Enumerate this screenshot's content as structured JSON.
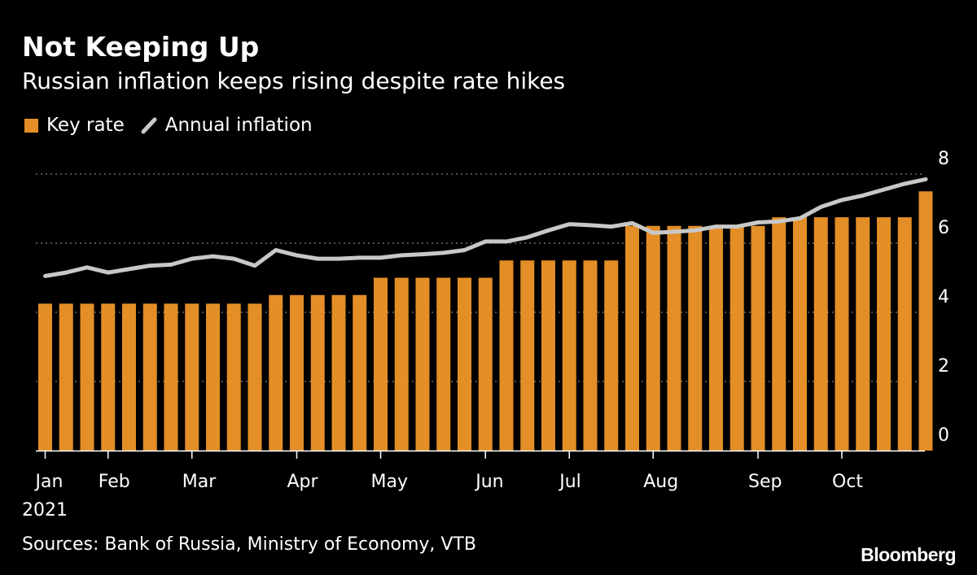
{
  "header": {
    "title": "Not Keeping Up",
    "subtitle": "Russian inflation keeps rising despite rate hikes"
  },
  "legend": {
    "bar_label": "Key rate",
    "line_label": "Annual inflation"
  },
  "footer": {
    "source": "Sources: Bank of Russia, Ministry of Economy, VTB",
    "brand": "Bloomberg"
  },
  "colors": {
    "bar": "#E38E26",
    "line": "#C8C8C8",
    "grid": "#808080",
    "background": "#000000"
  },
  "chart_data": {
    "type": "bar",
    "legend_position": "top-left",
    "grid": true,
    "ylim": [
      0,
      8
    ],
    "yticks": [
      0,
      2,
      4,
      6,
      8
    ],
    "x_period_labels": [
      "Jan",
      "Feb",
      "Mar",
      "Apr",
      "May",
      "Jun",
      "Jul",
      "Aug",
      "Sep",
      "Oct"
    ],
    "x_period_label_index": [
      0,
      3,
      7,
      12,
      16,
      21,
      25,
      29,
      34,
      38
    ],
    "x_year_label": "2021",
    "series": [
      {
        "name": "Key rate",
        "type": "bar",
        "values": [
          4.25,
          4.25,
          4.25,
          4.25,
          4.25,
          4.25,
          4.25,
          4.25,
          4.25,
          4.25,
          4.25,
          4.5,
          4.5,
          4.5,
          4.5,
          4.5,
          5.0,
          5.0,
          5.0,
          5.0,
          5.0,
          5.0,
          5.5,
          5.5,
          5.5,
          5.5,
          5.5,
          5.5,
          6.5,
          6.5,
          6.5,
          6.5,
          6.5,
          6.5,
          6.5,
          6.75,
          6.75,
          6.75,
          6.75,
          6.75,
          6.75,
          6.75,
          7.5
        ]
      },
      {
        "name": "Annual inflation",
        "type": "line",
        "values": [
          5.05,
          5.15,
          5.3,
          5.15,
          5.25,
          5.35,
          5.38,
          5.55,
          5.62,
          5.55,
          5.35,
          5.8,
          5.65,
          5.55,
          5.55,
          5.58,
          5.58,
          5.65,
          5.68,
          5.72,
          5.8,
          6.05,
          6.05,
          6.17,
          6.37,
          6.55,
          6.52,
          6.48,
          6.58,
          6.3,
          6.33,
          6.37,
          6.48,
          6.48,
          6.6,
          6.63,
          6.72,
          7.05,
          7.25,
          7.38,
          7.55,
          7.72,
          7.85
        ]
      }
    ]
  }
}
